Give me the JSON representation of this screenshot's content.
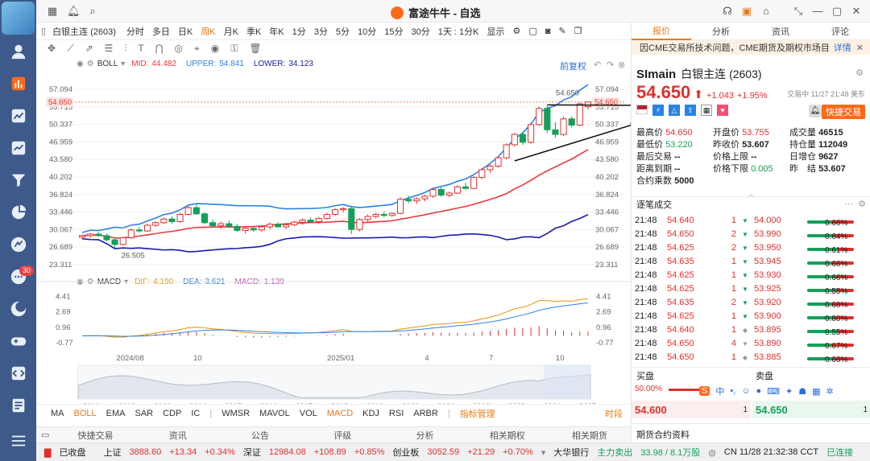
{
  "window": {
    "title": "富途牛牛 - 自选"
  },
  "sidebar": {
    "badge": "30"
  },
  "toolbar": {
    "symbol": "白银主连 (2603)",
    "periods": [
      "分时",
      "多日",
      "日K",
      "周K",
      "月K",
      "季K",
      "年K",
      "1分",
      "3分",
      "5分",
      "10分",
      "15分",
      "30分",
      "1天 : 1分K",
      "显示"
    ],
    "active_period": "周K"
  },
  "boll": {
    "name": "BOLL",
    "mid_label": "MID:",
    "mid": "44.482",
    "upper_label": "UPPER:",
    "upper": "54.841",
    "lower_label": "LOWER:",
    "lower": "34.123"
  },
  "adjust_label": "前复权",
  "macd": {
    "name": "MACD",
    "dif_label": "DIF:",
    "dif": "4.190",
    "dea_label": "DEA:",
    "dea": "3.621",
    "macd_label": "MACD:",
    "macd": "1.139"
  },
  "chart_data": [
    {
      "type": "candlestick",
      "title": "",
      "yticks": [
        "57.094",
        "53.715",
        "50.337",
        "46.959",
        "43.580",
        "40.202",
        "36.824",
        "33.446",
        "30.067",
        "26.689",
        "23.311"
      ],
      "ylim": [
        21.6,
        58.8
      ],
      "current_price": "54.650",
      "high_label": "54.650",
      "low_label": "26.505",
      "x_labels": [
        "2024/08",
        "10",
        "2025/01",
        "4",
        "7",
        "10"
      ],
      "candles": [
        [
          28.6,
          29.1,
          28.2,
          28.9
        ],
        [
          28.9,
          29.4,
          28.5,
          29.2
        ],
        [
          29.2,
          29.6,
          28.7,
          28.9
        ],
        [
          28.9,
          29.3,
          27.8,
          28.1
        ],
        [
          28.1,
          28.6,
          26.5,
          27.2
        ],
        [
          27.2,
          28.7,
          27.0,
          28.5
        ],
        [
          28.5,
          30.3,
          28.3,
          30.0
        ],
        [
          30.0,
          30.6,
          29.5,
          29.8
        ],
        [
          29.8,
          31.2,
          29.6,
          30.9
        ],
        [
          30.9,
          31.7,
          30.6,
          31.4
        ],
        [
          31.4,
          32.4,
          31.1,
          32.1
        ],
        [
          32.1,
          32.6,
          31.2,
          31.6
        ],
        [
          31.6,
          33.3,
          31.4,
          33.0
        ],
        [
          33.0,
          34.6,
          32.8,
          34.3
        ],
        [
          34.3,
          34.9,
          32.9,
          33.1
        ],
        [
          33.1,
          33.4,
          31.1,
          31.4
        ],
        [
          31.4,
          32.0,
          30.6,
          30.8
        ],
        [
          30.8,
          31.6,
          30.2,
          31.2
        ],
        [
          31.2,
          31.8,
          30.4,
          30.7
        ],
        [
          30.7,
          31.1,
          29.6,
          29.9
        ],
        [
          29.9,
          30.6,
          29.3,
          30.3
        ],
        [
          30.3,
          30.7,
          29.6,
          30.0
        ],
        [
          30.0,
          30.9,
          29.7,
          30.6
        ],
        [
          30.6,
          31.4,
          30.2,
          31.1
        ],
        [
          31.1,
          31.5,
          30.4,
          30.6
        ],
        [
          30.6,
          31.3,
          30.2,
          31.0
        ],
        [
          31.0,
          31.8,
          30.7,
          31.5
        ],
        [
          31.5,
          32.2,
          31.0,
          31.9
        ],
        [
          31.9,
          32.4,
          31.3,
          31.6
        ],
        [
          31.6,
          32.4,
          31.2,
          32.2
        ],
        [
          32.2,
          33.3,
          32.0,
          33.0
        ],
        [
          33.0,
          34.2,
          32.7,
          33.9
        ],
        [
          33.9,
          34.4,
          33.4,
          34.1
        ],
        [
          34.1,
          34.6,
          29.2,
          30.1
        ],
        [
          30.1,
          32.3,
          29.7,
          32.0
        ],
        [
          32.0,
          33.0,
          31.6,
          32.6
        ],
        [
          32.6,
          33.3,
          32.2,
          33.0
        ],
        [
          33.0,
          33.6,
          32.4,
          32.8
        ],
        [
          32.8,
          33.4,
          32.5,
          33.2
        ],
        [
          33.2,
          36.3,
          33.0,
          35.9
        ],
        [
          35.9,
          36.6,
          35.2,
          35.6
        ],
        [
          35.6,
          36.3,
          35.0,
          36.0
        ],
        [
          36.0,
          36.8,
          35.5,
          36.5
        ],
        [
          36.5,
          38.1,
          36.2,
          37.8
        ],
        [
          37.8,
          38.3,
          36.4,
          36.7
        ],
        [
          36.7,
          37.4,
          36.3,
          37.1
        ],
        [
          37.1,
          38.6,
          36.9,
          38.3
        ],
        [
          38.3,
          39.1,
          37.7,
          38.0
        ],
        [
          38.0,
          40.4,
          37.8,
          40.1
        ],
        [
          40.1,
          41.9,
          39.8,
          41.6
        ],
        [
          41.6,
          42.6,
          41.0,
          42.3
        ],
        [
          42.3,
          44.2,
          42.0,
          43.9
        ],
        [
          43.9,
          46.7,
          43.6,
          46.4
        ],
        [
          46.4,
          48.7,
          46.1,
          48.4
        ],
        [
          48.4,
          48.9,
          46.4,
          46.9
        ],
        [
          46.9,
          50.6,
          46.6,
          50.3
        ],
        [
          50.3,
          53.8,
          50.0,
          53.4
        ],
        [
          53.4,
          53.9,
          48.7,
          49.3
        ],
        [
          49.3,
          50.8,
          47.8,
          48.4
        ],
        [
          48.4,
          51.8,
          48.1,
          51.4
        ],
        [
          51.4,
          51.9,
          49.7,
          50.2
        ],
        [
          50.2,
          54.6,
          50.0,
          54.3
        ],
        [
          53.755,
          54.65,
          53.22,
          54.65
        ]
      ]
    },
    {
      "type": "line",
      "title": "",
      "yticks": [
        "4.41",
        "2.69",
        "0.96",
        "-0.77"
      ],
      "ylim": [
        -1.5,
        5.0
      ],
      "series": [
        {
          "name": "DIF"
        },
        {
          "name": "DEA"
        },
        {
          "name": "MACD"
        }
      ]
    },
    {
      "type": "area",
      "title": "",
      "x": [
        "2011",
        "2012",
        "2013",
        "2014",
        "2015",
        "2016",
        "2017",
        "2018",
        "2019",
        "2020",
        "2021",
        "2022",
        "2023",
        "2024",
        "2025"
      ]
    }
  ],
  "indicators": [
    "MA",
    "BOLL",
    "EMA",
    "SAR",
    "CDP",
    "IC",
    "WMSR",
    "MAVOL",
    "VOL",
    "MACD",
    "KDJ",
    "RSI",
    "ARBR",
    "指标管理",
    "时段"
  ],
  "bottom_tabs": [
    "快捷交易",
    "资讯",
    "公告",
    "评级",
    "分析",
    "相关期权",
    "相关期货"
  ],
  "statusbar": {
    "closed": "已收盘",
    "sh_label": "上证",
    "sh_val": "3888.60",
    "sh_chg": "+13.34",
    "sh_pct": "+0.34%",
    "sz_label": "深证",
    "sz_val": "12984.08",
    "sz_chg": "+108.89",
    "sz_pct": "+0.85%",
    "cy_label": "创业板",
    "cy_val": "3052.59",
    "cy_chg": "+21.29",
    "cy_pct": "+0.70%",
    "bank": "大华银行",
    "flow_label": "主力卖出",
    "flow": "33.98 / 8.1万股",
    "time": "CN 11/28 21:32:38 CCT",
    "conn": "已连接"
  },
  "right": {
    "tabs": [
      "报价",
      "分析",
      "资讯",
      "评论"
    ],
    "notice": "因CME交易所技术问题，CME期货及期权市场目...",
    "notice_link": "详情",
    "code": "SImain",
    "name": "白银主连 (2603)",
    "price": "54.650",
    "chg": "+1.043",
    "pct": "+1.95%",
    "time": "交易中 11/27 21:48 美东",
    "quick_trade": "快捷交易",
    "stats": [
      [
        "最高价",
        "54.650",
        "开盘价",
        "53.755",
        "成交量",
        "46515"
      ],
      [
        "最低价",
        "53.220",
        "昨收价",
        "53.607",
        "持仓量",
        "112049"
      ],
      [
        "最后交易",
        "--",
        "价格上限",
        "--",
        "日增仓",
        "9627"
      ],
      [
        "距离到期",
        "--",
        "价格下限",
        "0.005",
        "昨　结",
        "53.607"
      ],
      [
        "合约乘数",
        "5000",
        "",
        "",
        "",
        ""
      ]
    ],
    "trades_title": "逐笔成交",
    "trades": [
      [
        "21:48",
        "54.640",
        "1",
        "54.000",
        "0.66%"
      ],
      [
        "21:48",
        "54.650",
        "2",
        "53.990",
        "0.64%"
      ],
      [
        "21:48",
        "54.625",
        "2",
        "53.950",
        "0.61%"
      ],
      [
        "21:48",
        "54.635",
        "1",
        "53.945",
        "0.66%"
      ],
      [
        "21:48",
        "54.625",
        "1",
        "53.930",
        "0.66%"
      ],
      [
        "21:48",
        "54.625",
        "1",
        "53.925",
        "0.55%"
      ],
      [
        "21:48",
        "54.635",
        "2",
        "53.920",
        "0.68%"
      ],
      [
        "21:48",
        "54.625",
        "1",
        "53.900",
        "0.80%"
      ],
      [
        "21:48",
        "54.640",
        "1",
        "53.895",
        "0.55%"
      ],
      [
        "21:48",
        "54.650",
        "4",
        "53.890",
        "0.67%"
      ],
      [
        "21:48",
        "54.650",
        "1",
        "53.885",
        "0.66%"
      ]
    ],
    "bid_label": "买盘",
    "ask_label": "卖盘",
    "bid_pct": "50.00%",
    "bid": "54.600",
    "bid_qty": "1",
    "ask": "54.650",
    "ask_qty": "1",
    "contract_info": "期货合约资料"
  }
}
